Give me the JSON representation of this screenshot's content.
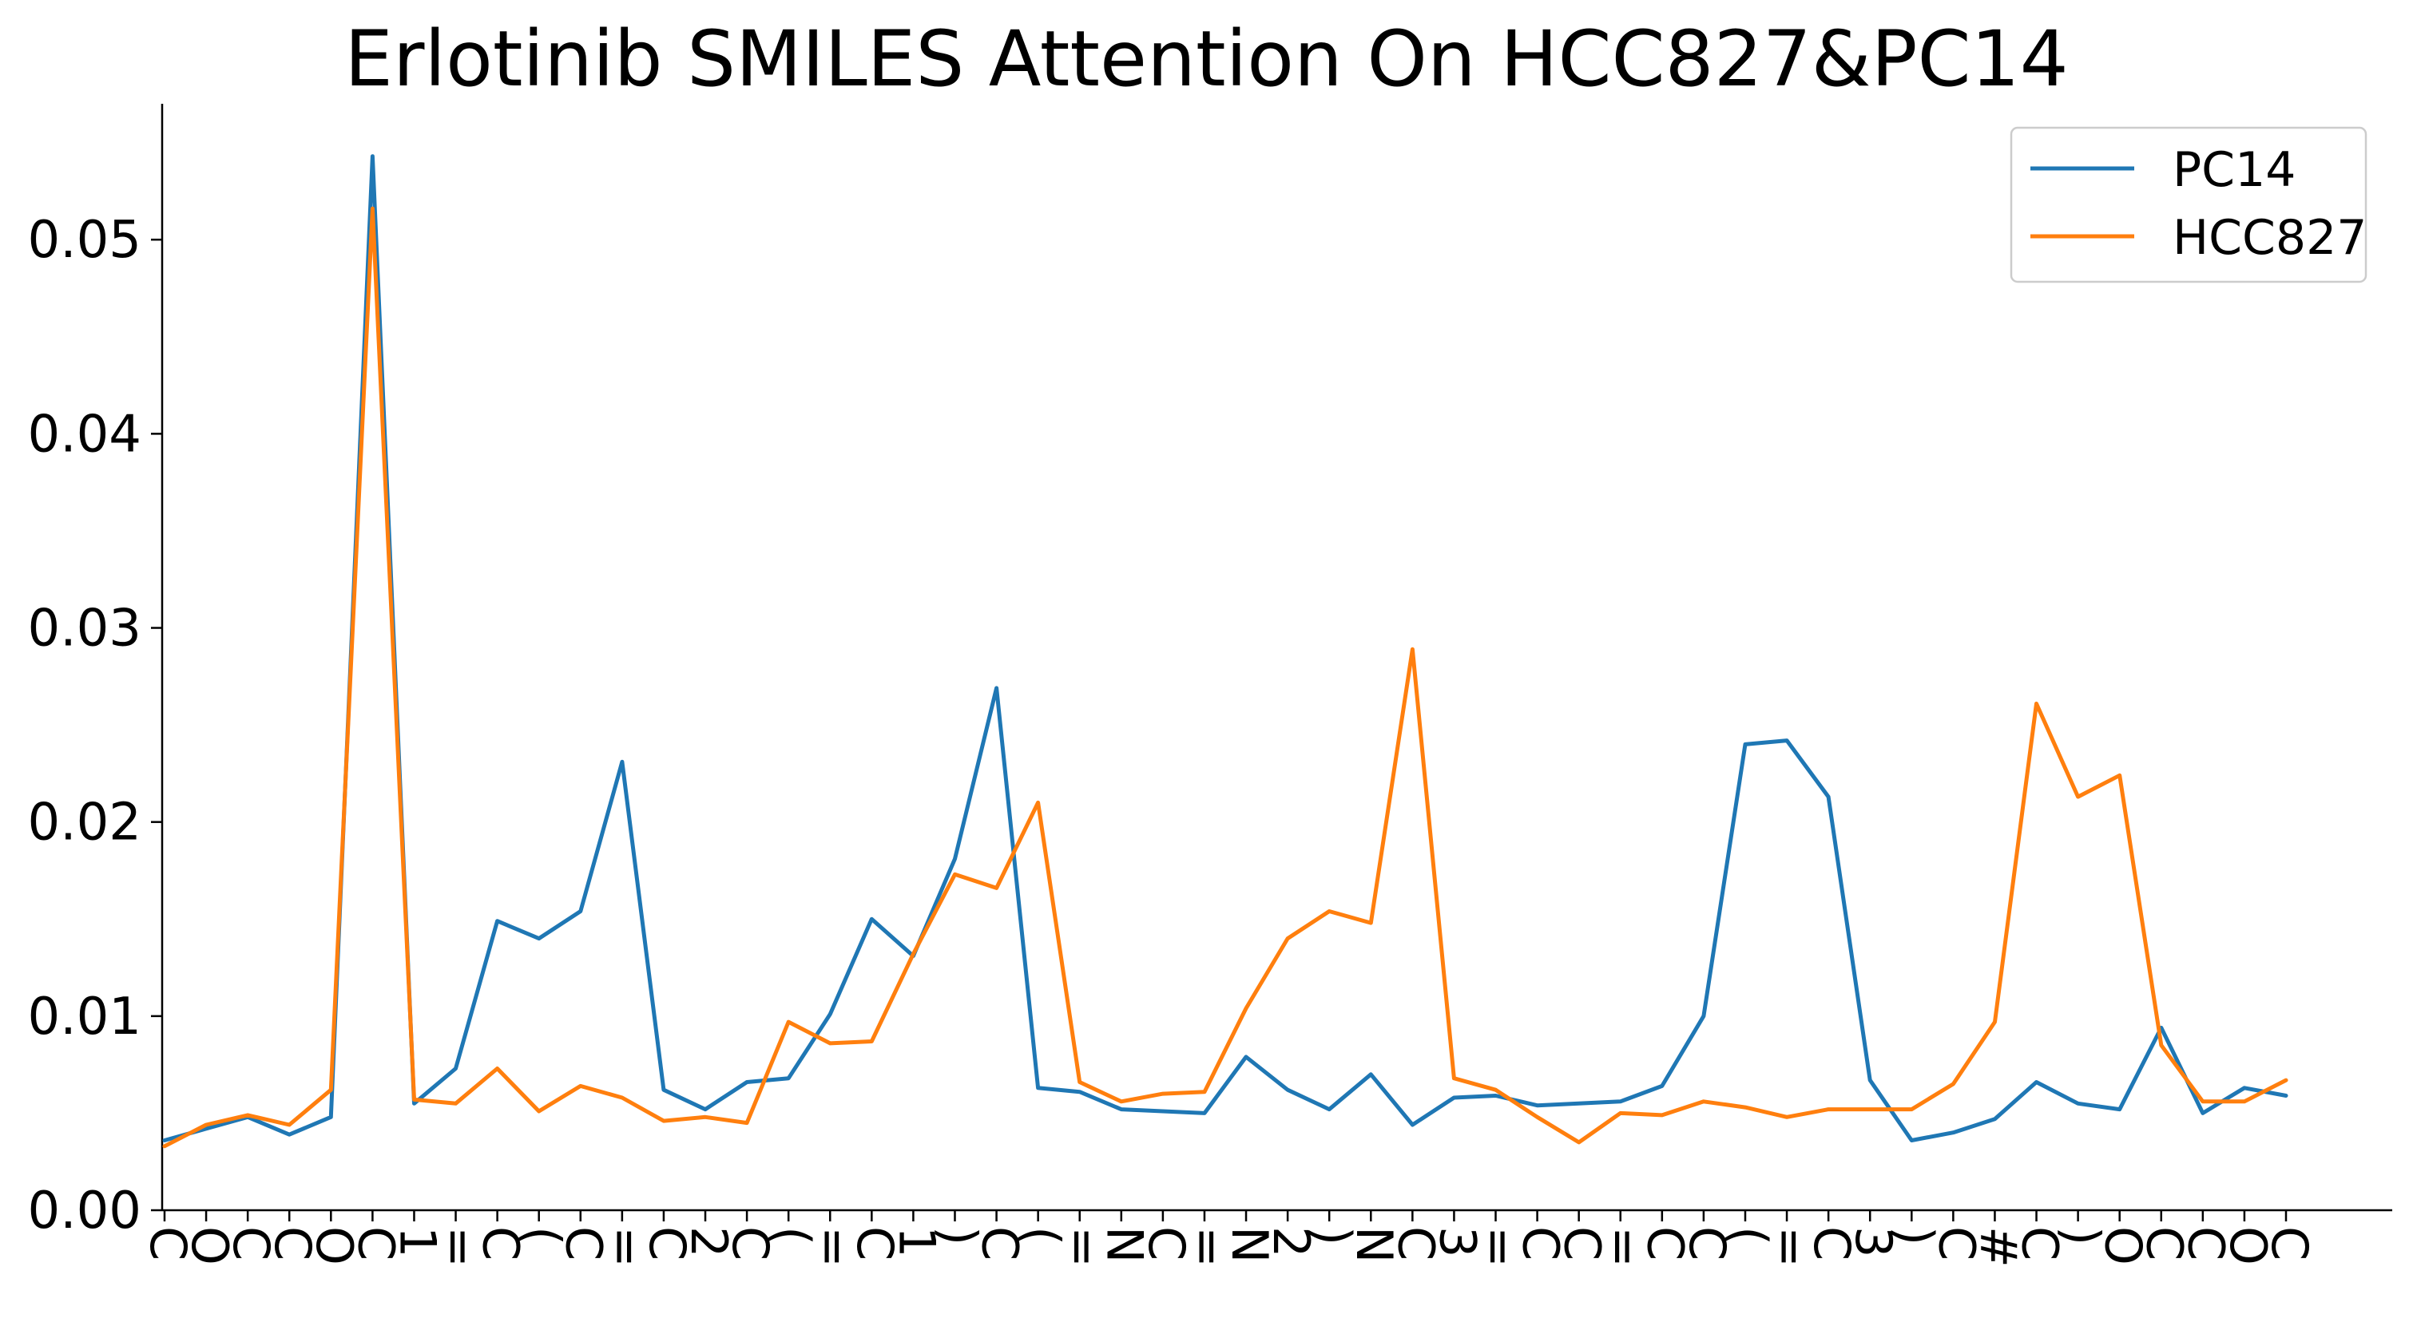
{
  "chart_data": {
    "type": "line",
    "title": "Erlotinib SMILES Attention On HCC827&PC14",
    "xlabel": "",
    "ylabel": "",
    "ylim": [
      0,
      0.057
    ],
    "yticks": [
      0.0,
      0.01,
      0.02,
      0.03,
      0.04,
      0.05
    ],
    "ytick_labels": [
      "0.00",
      "0.01",
      "0.02",
      "0.03",
      "0.04",
      "0.05"
    ],
    "grid": false,
    "legend_position": "top-right",
    "categories": [
      "C",
      "O",
      "C",
      "C",
      "O",
      "C",
      "1",
      "=",
      "C",
      "(",
      "C",
      "=",
      "C",
      "2",
      "C",
      "(",
      "=",
      "C",
      "1",
      ")",
      "C",
      "(",
      "=",
      "N",
      "C",
      "=",
      "N",
      "2",
      ")",
      "N",
      "C",
      "3",
      "=",
      "C",
      "C",
      "=",
      "C",
      "C",
      "(",
      "=",
      "C",
      "3",
      ")",
      "C",
      "#",
      "C",
      ")",
      "O",
      "C",
      "C",
      "O",
      "C"
    ],
    "series": [
      {
        "name": "PC14",
        "color": "#1f77b4",
        "values": [
          0.0036,
          0.0042,
          0.0048,
          0.0039,
          0.0048,
          0.0543,
          0.0055,
          0.0073,
          0.0149,
          0.014,
          0.0154,
          0.0231,
          0.0062,
          0.0052,
          0.0066,
          0.0068,
          0.0101,
          0.015,
          0.0131,
          0.0181,
          0.0269,
          0.0063,
          0.0061,
          0.0052,
          0.0051,
          0.005,
          0.0079,
          0.0062,
          0.0052,
          0.007,
          0.0044,
          0.0058,
          0.0059,
          0.0054,
          0.0055,
          0.0056,
          0.0064,
          0.01,
          0.024,
          0.0242,
          0.0213,
          0.0067,
          0.0036,
          0.004,
          0.0047,
          0.0066,
          0.0055,
          0.0052,
          0.0094,
          0.005,
          0.0063,
          0.0059
        ]
      },
      {
        "name": "HCC827",
        "color": "#ff7f0e",
        "values": [
          0.0033,
          0.0044,
          0.0049,
          0.0044,
          0.0062,
          0.0516,
          0.0057,
          0.0055,
          0.0073,
          0.0051,
          0.0064,
          0.0058,
          0.0046,
          0.0048,
          0.0045,
          0.0097,
          0.0086,
          0.0087,
          0.0132,
          0.0173,
          0.0166,
          0.021,
          0.0066,
          0.0056,
          0.006,
          0.0061,
          0.0104,
          0.014,
          0.0154,
          0.0148,
          0.0289,
          0.0068,
          0.0062,
          0.0048,
          0.0035,
          0.005,
          0.0049,
          0.0056,
          0.0053,
          0.0048,
          0.0052,
          0.0052,
          0.0052,
          0.0065,
          0.0097,
          0.0261,
          0.0213,
          0.0224,
          0.0085,
          0.0056,
          0.0056,
          0.0067
        ]
      }
    ]
  }
}
